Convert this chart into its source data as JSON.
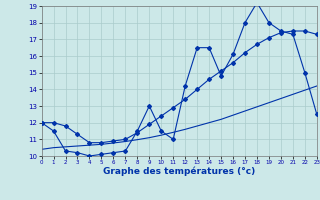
{
  "xlabel": "Graphe des températures (°c)",
  "bg_color": "#cce8e8",
  "grid_color": "#aacccc",
  "line_color": "#0033aa",
  "xmin": 0,
  "xmax": 23,
  "ymin": 10,
  "ymax": 19,
  "hours": [
    0,
    1,
    2,
    3,
    4,
    5,
    6,
    7,
    8,
    9,
    10,
    11,
    12,
    13,
    14,
    15,
    16,
    17,
    18,
    19,
    20,
    21,
    22,
    23
  ],
  "temps": [
    12.0,
    11.5,
    10.3,
    10.2,
    10.0,
    10.1,
    10.2,
    10.3,
    11.5,
    13.0,
    11.5,
    11.0,
    14.2,
    16.5,
    16.5,
    14.8,
    16.1,
    18.0,
    19.2,
    18.0,
    17.5,
    17.3,
    15.0,
    12.5
  ],
  "trend_smooth": [
    12.0,
    12.0,
    11.8,
    11.3,
    10.8,
    10.8,
    10.9,
    11.0,
    11.4,
    11.9,
    12.4,
    12.9,
    13.4,
    14.0,
    14.6,
    15.1,
    15.6,
    16.2,
    16.7,
    17.1,
    17.4,
    17.5,
    17.5,
    17.3
  ],
  "trend_linear": [
    10.4,
    10.5,
    10.55,
    10.6,
    10.65,
    10.7,
    10.78,
    10.87,
    10.98,
    11.1,
    11.25,
    11.42,
    11.6,
    11.8,
    12.0,
    12.2,
    12.45,
    12.7,
    12.95,
    13.2,
    13.45,
    13.7,
    13.95,
    14.2
  ]
}
